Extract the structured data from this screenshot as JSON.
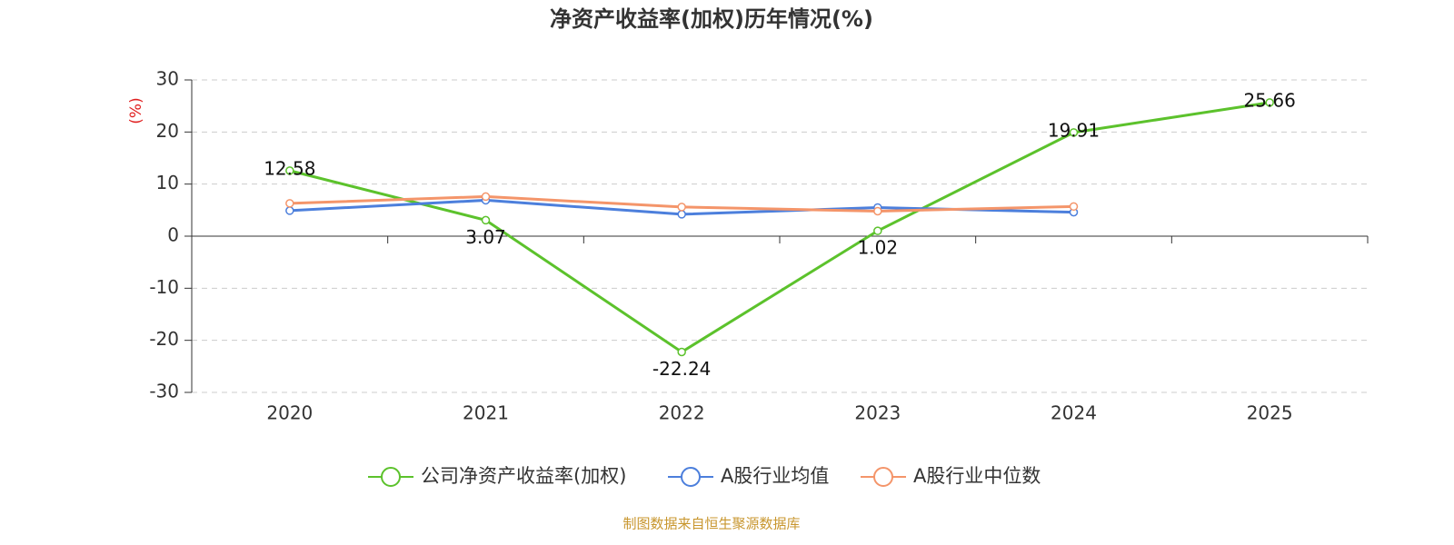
{
  "chart_data": {
    "type": "line",
    "title": "净资产收益率(加权)历年情况(%)",
    "y_label": "(%)",
    "categories": [
      "2020",
      "2021",
      "2022",
      "2023",
      "2024",
      "2025"
    ],
    "series": [
      {
        "name": "公司净资产收益率(加权)",
        "color": "#5cc22c",
        "values": [
          12.58,
          3.07,
          -22.24,
          1.02,
          19.91,
          25.66
        ],
        "labels": true
      },
      {
        "name": "A股行业均值",
        "color": "#4c7fdc",
        "values": [
          4.9,
          6.9,
          4.2,
          5.5,
          4.6,
          null
        ]
      },
      {
        "name": "A股行业中位数",
        "color": "#f4956a",
        "values": [
          6.3,
          7.6,
          5.6,
          4.8,
          5.7,
          null
        ]
      }
    ],
    "ylim": [
      -30,
      30
    ],
    "yticks": [
      -30,
      -20,
      -10,
      0,
      10,
      20,
      30
    ],
    "grid": true,
    "legend": "bottom",
    "source": "制图数据来自恒生聚源数据库"
  }
}
